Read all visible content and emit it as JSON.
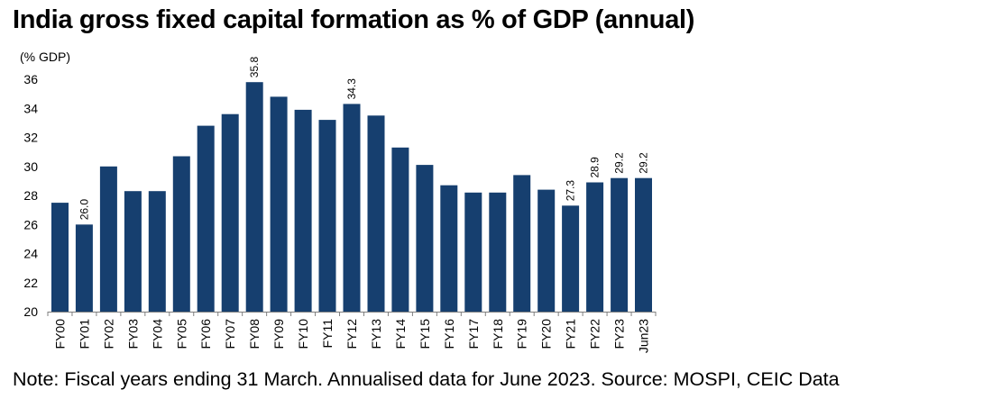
{
  "title": "India gross fixed capital formation as % of GDP (annual)",
  "note": "Note: Fiscal years ending 31 March. Annualised data for June 2023. Source: MOSPI, CEIC Data",
  "colors": {
    "bar": "#163f6f",
    "axis": "#7f7f7f"
  },
  "chart_data": {
    "type": "bar",
    "title": "India gross fixed capital formation as % of GDP (annual)",
    "ylabel": "(% GDP)",
    "xlabel": "",
    "ylim": [
      20,
      36
    ],
    "yticks": [
      20,
      22,
      24,
      26,
      28,
      30,
      32,
      34,
      36
    ],
    "grid": false,
    "categories": [
      "FY00",
      "FY01",
      "FY02",
      "FY03",
      "FY04",
      "FY05",
      "FY06",
      "FY07",
      "FY08",
      "FY09",
      "FY10",
      "FY11",
      "FY12",
      "FY13",
      "FY14",
      "FY15",
      "FY16",
      "FY17",
      "FY18",
      "FY19",
      "FY20",
      "FY21",
      "FY22",
      "FY23",
      "Jun23"
    ],
    "values": [
      27.5,
      26.0,
      30.0,
      28.3,
      28.3,
      30.7,
      32.8,
      33.6,
      35.8,
      34.8,
      33.9,
      33.2,
      34.3,
      33.5,
      31.3,
      30.1,
      28.7,
      28.2,
      28.2,
      29.4,
      28.4,
      27.3,
      28.9,
      29.2,
      29.2
    ],
    "data_labels": [
      {
        "category": "FY01",
        "text": "26.0"
      },
      {
        "category": "FY08",
        "text": "35.8"
      },
      {
        "category": "FY12",
        "text": "34.3"
      },
      {
        "category": "FY21",
        "text": "27.3"
      },
      {
        "category": "FY22",
        "text": "28.9"
      },
      {
        "category": "FY23",
        "text": "29.2"
      },
      {
        "category": "Jun23",
        "text": "29.2"
      }
    ]
  }
}
